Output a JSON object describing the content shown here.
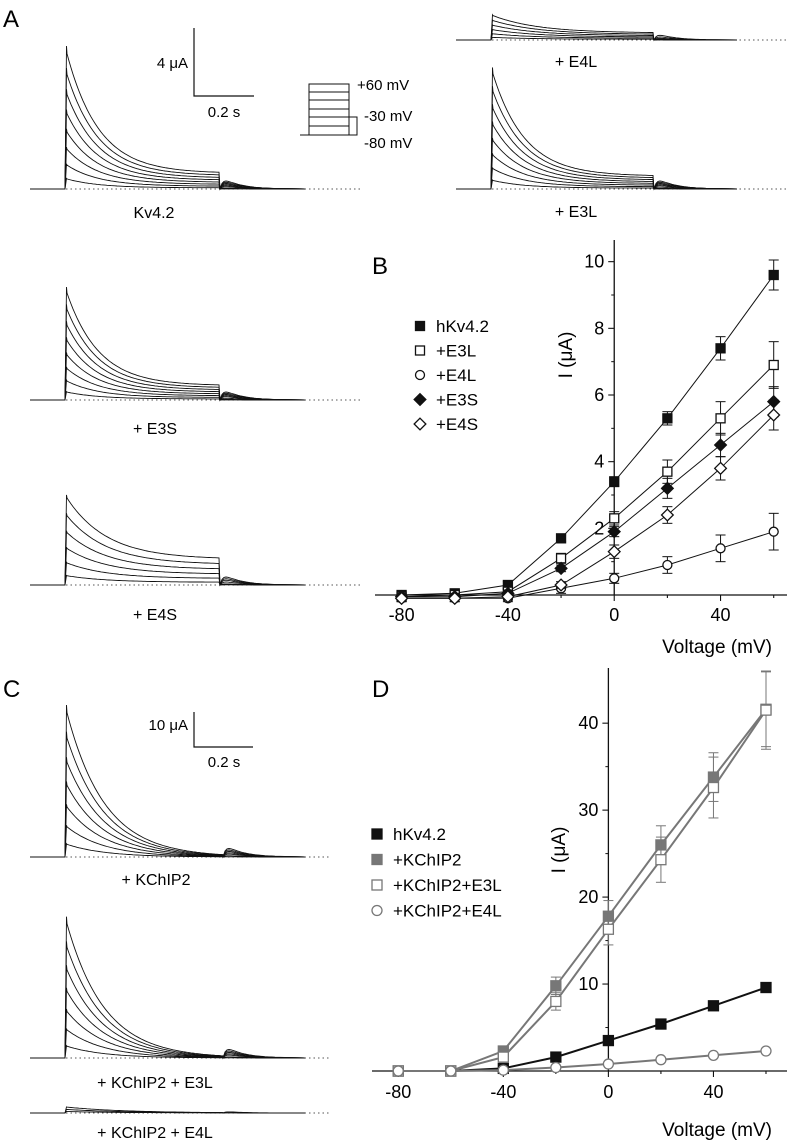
{
  "panel_letters": [
    "A",
    "B",
    "C",
    "D"
  ],
  "panel_a": {
    "traces": [
      {
        "label": "Kv4.2",
        "peak_frac": 1.0,
        "sus_frac": 0.11,
        "n_steps": 8
      },
      {
        "label": "+ E4L",
        "peak_frac": 0.18,
        "sus_frac": 0.05,
        "n_steps": 6
      },
      {
        "label": "+ E3L",
        "peak_frac": 0.85,
        "sus_frac": 0.09,
        "n_steps": 8
      },
      {
        "label": "+ E3S",
        "peak_frac": 0.79,
        "sus_frac": 0.1,
        "n_steps": 8
      },
      {
        "label": "+ E4S",
        "peak_frac": 0.63,
        "sus_frac": 0.18,
        "n_steps": 6
      }
    ],
    "scale_bar": {
      "current": "4 μA",
      "time": "0.2 s"
    },
    "protocol_labels": [
      "+60 mV",
      "-30 mV",
      "-80 mV"
    ]
  },
  "panel_c": {
    "traces": [
      {
        "label": "+ KChIP2",
        "peak_frac": 1.0,
        "n_steps": 7
      },
      {
        "label": "+ KChIP2 + E3L",
        "peak_frac": 0.93,
        "n_steps": 7
      },
      {
        "label": "+ KChIP2 + E4L",
        "peak_frac": 0.04,
        "n_steps": 3
      }
    ],
    "scale_bar": {
      "current": "10 μA",
      "time": "0.2 s"
    }
  },
  "chart_data": [
    {
      "panel": "B",
      "type": "scatter",
      "xlabel": "Voltage (mV)",
      "ylabel": "I (μA)",
      "xlim": [
        -90,
        65
      ],
      "ylim": [
        0,
        10.5
      ],
      "xticks": [
        -80,
        -40,
        0,
        40
      ],
      "yticks": [
        2,
        4,
        6,
        8,
        10
      ],
      "legend_position": "upper-left",
      "x": [
        -80,
        -60,
        -40,
        -20,
        0,
        20,
        40,
        60
      ],
      "series": [
        {
          "name": "hKv4.2",
          "marker": "square",
          "filled": true,
          "color": "#111111",
          "values": [
            0.0,
            0.05,
            0.3,
            1.7,
            3.4,
            5.3,
            7.4,
            9.6
          ],
          "errors": [
            0.1,
            0.1,
            0.1,
            0.1,
            0.15,
            0.2,
            0.35,
            0.45
          ]
        },
        {
          "name": "+E3L",
          "marker": "square",
          "filled": false,
          "color": "#111111",
          "values": [
            -0.05,
            0.0,
            0.1,
            1.1,
            2.3,
            3.7,
            5.3,
            6.9
          ],
          "errors": [
            0.1,
            0.1,
            0.1,
            0.15,
            0.2,
            0.35,
            0.5,
            0.7
          ]
        },
        {
          "name": "+E4L",
          "marker": "circle",
          "filled": false,
          "color": "#111111",
          "values": [
            -0.1,
            -0.1,
            -0.1,
            0.2,
            0.5,
            0.9,
            1.4,
            1.9
          ],
          "errors": [
            0.1,
            0.1,
            0.1,
            0.15,
            0.15,
            0.25,
            0.4,
            0.55
          ]
        },
        {
          "name": "+E3S",
          "marker": "diamond",
          "filled": true,
          "color": "#111111",
          "values": [
            -0.05,
            -0.05,
            0.05,
            0.8,
            1.9,
            3.2,
            4.5,
            5.8
          ],
          "errors": [
            0.1,
            0.1,
            0.1,
            0.1,
            0.15,
            0.3,
            0.35,
            0.45
          ]
        },
        {
          "name": "+E4S",
          "marker": "diamond",
          "filled": false,
          "color": "#111111",
          "values": [
            -0.1,
            -0.1,
            -0.05,
            0.3,
            1.3,
            2.4,
            3.8,
            5.4
          ],
          "errors": [
            0.1,
            0.1,
            0.1,
            0.1,
            0.2,
            0.25,
            0.35,
            0.45
          ]
        }
      ]
    },
    {
      "panel": "D",
      "type": "scatter",
      "xlabel": "Voltage (mV)",
      "ylabel": "I (μA)",
      "xlim": [
        -90,
        68
      ],
      "ylim": [
        0,
        46
      ],
      "xticks": [
        -80,
        -40,
        0,
        40
      ],
      "yticks": [
        10,
        20,
        30,
        40
      ],
      "legend_position": "lower-left",
      "x": [
        -80,
        -60,
        -40,
        -20,
        0,
        20,
        40,
        60
      ],
      "series": [
        {
          "name": "hKv4.2",
          "marker": "square",
          "filled": true,
          "color": "#111111",
          "values": [
            0,
            0,
            0.3,
            1.6,
            3.5,
            5.4,
            7.5,
            9.6
          ],
          "errors": [
            0,
            0,
            0,
            0,
            0,
            0,
            0,
            0
          ]
        },
        {
          "name": "+KChIP2",
          "marker": "square",
          "filled": true,
          "color": "#777777",
          "values": [
            0,
            0,
            2.3,
            9.8,
            17.8,
            26.0,
            33.8,
            41.6
          ],
          "errors": [
            0.2,
            0.2,
            0.5,
            1.0,
            1.8,
            2.2,
            2.8,
            4.3
          ]
        },
        {
          "name": "+KChIP2+E3L",
          "marker": "square",
          "filled": false,
          "color": "#777777",
          "values": [
            0,
            0,
            1.6,
            8.0,
            16.3,
            24.3,
            32.6,
            41.5
          ],
          "errors": [
            0.2,
            0.2,
            0.5,
            1.0,
            1.8,
            2.6,
            3.5,
            4.5
          ]
        },
        {
          "name": "+KChIP2+E4L",
          "marker": "circle",
          "filled": false,
          "color": "#777777",
          "values": [
            0,
            0,
            0.1,
            0.4,
            0.8,
            1.3,
            1.8,
            2.3
          ],
          "errors": [
            0,
            0,
            0,
            0,
            0,
            0,
            0,
            0
          ]
        }
      ]
    }
  ]
}
